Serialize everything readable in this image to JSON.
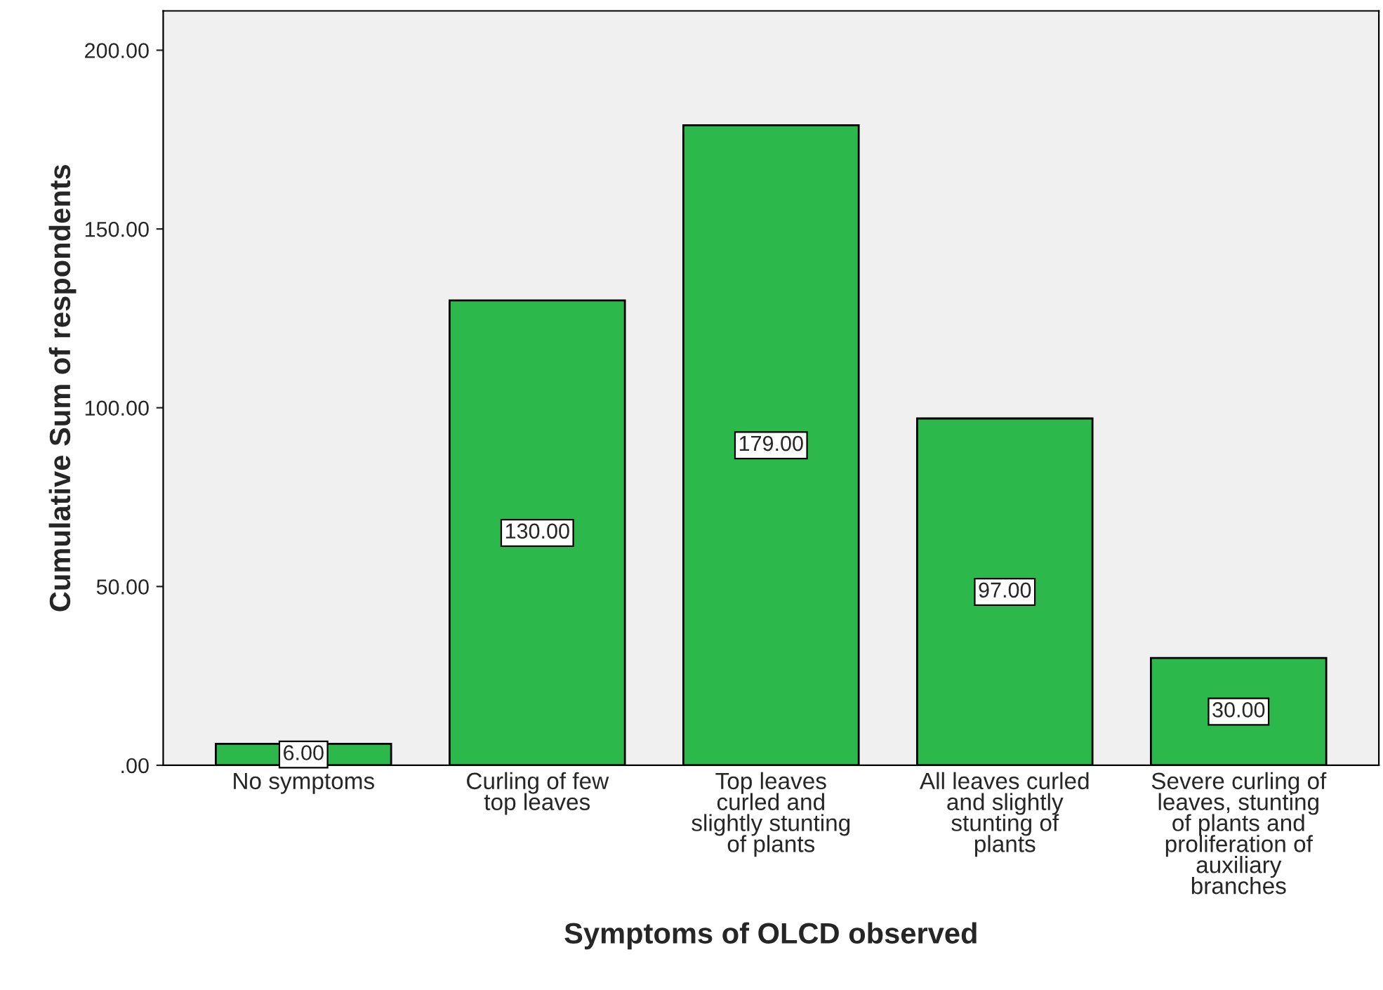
{
  "chart_data": {
    "type": "bar",
    "xlabel": "Symptoms of OLCD observed",
    "ylabel": "Cumulative Sum of respondents",
    "categories": [
      "No symptoms",
      "Curling of few\ntop leaves",
      "Top leaves\ncurled and\nslightly stunting\nof plants",
      "All leaves curled\nand slightly\nstunting of\nplants",
      "Severe curling of\nleaves, stunting\nof plants and\nproliferation of\nauxiliary\nbranches"
    ],
    "values": [
      6,
      130,
      179,
      97,
      30
    ],
    "value_labels": [
      "6.00",
      "130.00",
      "179.00",
      "97.00",
      "30.00"
    ],
    "color": "#2db84b",
    "ylim": [
      0,
      211
    ],
    "yticks": [
      {
        "value": 0,
        "label": ".00"
      },
      {
        "value": 50,
        "label": "50.00"
      },
      {
        "value": 100,
        "label": "100.00"
      },
      {
        "value": 150,
        "label": "150.00"
      },
      {
        "value": 200,
        "label": "200.00"
      }
    ],
    "grid": false,
    "legend": false
  }
}
